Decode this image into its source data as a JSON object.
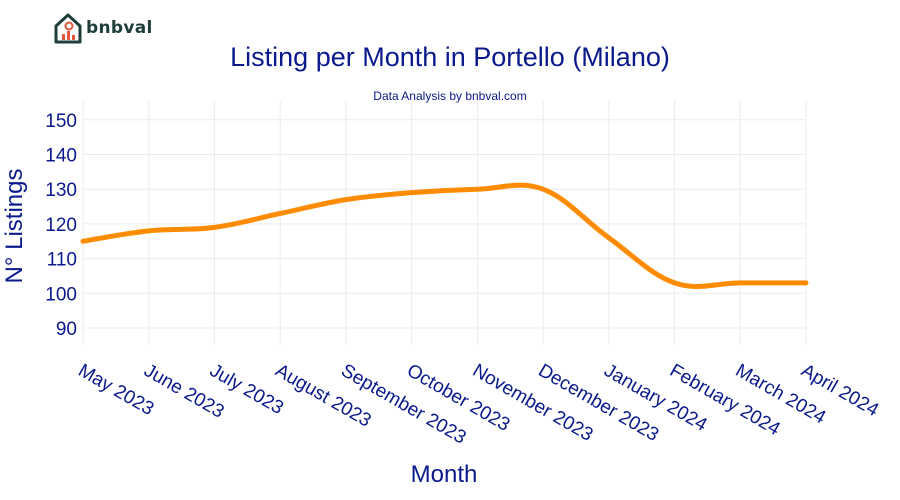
{
  "brand": {
    "name": "bnbval",
    "logo_icon": "house-chart-icon",
    "color": "#1f3d3a",
    "accent": "#e8553e"
  },
  "chart_data": {
    "type": "line",
    "title": "Listing per Month in Portello (Milano)",
    "subtitle": "Data Analysis by bnbval.com",
    "xlabel": "Month",
    "ylabel": "N° Listings",
    "categories": [
      "May 2023",
      "June 2023",
      "July 2023",
      "August 2023",
      "September 2023",
      "October 2023",
      "November 2023",
      "December 2023",
      "January 2024",
      "February 2024",
      "March 2024",
      "April 2024"
    ],
    "series": [
      {
        "values": [
          115,
          118,
          119,
          123,
          127,
          129,
          130,
          130,
          116,
          103,
          103,
          103
        ],
        "color": "#ff8c00"
      }
    ],
    "ylim": [
      82,
      155
    ],
    "yticks": [
      90,
      100,
      110,
      120,
      130,
      140,
      150
    ],
    "grid": true,
    "colors": {
      "text": "#0a1a8c",
      "grid": "#ececec"
    }
  }
}
